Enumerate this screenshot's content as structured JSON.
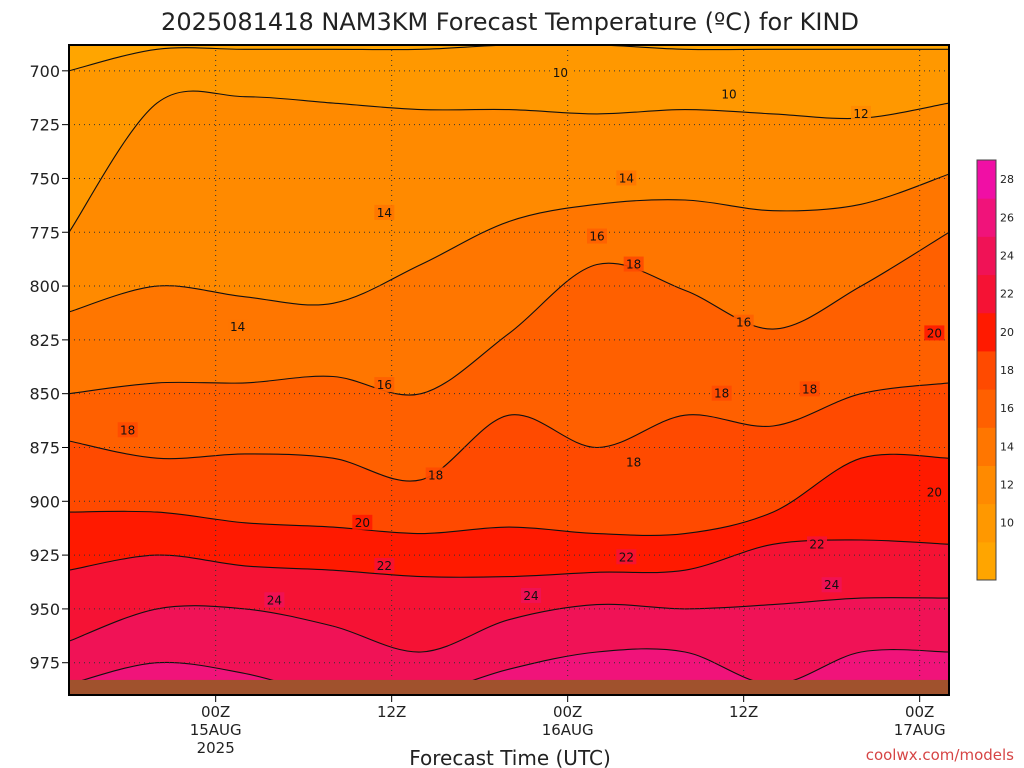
{
  "chart_data": {
    "type": "heatmap",
    "title": "2025081418 NAM3KM Forecast Temperature (ºC) for KIND",
    "xlabel": "Forecast Time (UTC)",
    "ylabel": "",
    "credit": "coolwx.com/models",
    "grid": true,
    "legend_placement": "right",
    "xlim_hours": [
      -4,
      56
    ],
    "ylim_hpa": [
      990,
      688
    ],
    "y_ticks": [
      {
        "value": 700,
        "label": "700"
      },
      {
        "value": 725,
        "label": "725"
      },
      {
        "value": 750,
        "label": "750"
      },
      {
        "value": 775,
        "label": "775"
      },
      {
        "value": 800,
        "label": "800"
      },
      {
        "value": 825,
        "label": "825"
      },
      {
        "value": 850,
        "label": "850"
      },
      {
        "value": 875,
        "label": "875"
      },
      {
        "value": 900,
        "label": "900"
      },
      {
        "value": 925,
        "label": "925"
      },
      {
        "value": 950,
        "label": "950"
      },
      {
        "value": 975,
        "label": "975"
      }
    ],
    "x_ticks": [
      {
        "value": 6,
        "label1": "00Z",
        "label2": "15AUG",
        "label3": "2025"
      },
      {
        "value": 18,
        "label1": "12Z",
        "label2": "",
        "label3": ""
      },
      {
        "value": 30,
        "label1": "00Z",
        "label2": "16AUG",
        "label3": ""
      },
      {
        "value": 42,
        "label1": "12Z",
        "label2": "",
        "label3": ""
      },
      {
        "value": 54,
        "label1": "00Z",
        "label2": "17AUG",
        "label3": ""
      }
    ],
    "colorbar": {
      "min": 8,
      "max": 30,
      "step": 2,
      "tick_labels": [
        "10",
        "12",
        "14",
        "16",
        "18",
        "20",
        "22",
        "24",
        "26",
        "28"
      ],
      "colors": [
        "#ffa500",
        "#ff9800",
        "#ff8a00",
        "#ff7600",
        "#ff6000",
        "#ff4a00",
        "#ff1a00",
        "#f51234",
        "#f01256",
        "#f0137a",
        "#f00fa5"
      ]
    },
    "surface_color": "#a0522d",
    "surface_pressure_hpa": 983,
    "x_hours": [
      -4,
      2,
      8,
      14,
      20,
      26,
      32,
      38,
      44,
      50,
      56
    ],
    "isotherm_pressure_hpa": {
      "10": [
        700,
        690,
        690,
        690,
        690,
        688,
        688,
        690,
        690,
        690,
        690
      ],
      "12": [
        775,
        715,
        712,
        715,
        718,
        718,
        720,
        718,
        720,
        722,
        715
      ],
      "14": [
        812,
        800,
        805,
        808,
        790,
        770,
        762,
        760,
        765,
        762,
        748
      ],
      "16": [
        850,
        845,
        845,
        842,
        850,
        822,
        790,
        802,
        820,
        800,
        775
      ],
      "18": [
        872,
        880,
        878,
        880,
        890,
        860,
        875,
        860,
        865,
        850,
        845
      ],
      "20": [
        905,
        905,
        910,
        912,
        915,
        912,
        915,
        915,
        905,
        880,
        880
      ],
      "22": [
        932,
        925,
        930,
        932,
        935,
        935,
        933,
        932,
        920,
        918,
        920
      ],
      "24": [
        965,
        950,
        950,
        958,
        970,
        955,
        948,
        950,
        948,
        945,
        945
      ],
      "26": [
        985,
        975,
        980,
        990,
        990,
        978,
        970,
        970,
        985,
        970,
        970
      ]
    },
    "contour_labels": [
      {
        "text": "10",
        "x": 29.5,
        "p": 701
      },
      {
        "text": "10",
        "x": 41,
        "p": 711
      },
      {
        "text": "12",
        "x": 50,
        "p": 720
      },
      {
        "text": "14",
        "x": 17.5,
        "p": 766
      },
      {
        "text": "14",
        "x": 34,
        "p": 750
      },
      {
        "text": "14",
        "x": 7.5,
        "p": 819
      },
      {
        "text": "16",
        "x": 32,
        "p": 777
      },
      {
        "text": "16",
        "x": 17.5,
        "p": 846
      },
      {
        "text": "16",
        "x": 42,
        "p": 817
      },
      {
        "text": "18",
        "x": 0,
        "p": 867
      },
      {
        "text": "18",
        "x": 34.5,
        "p": 790
      },
      {
        "text": "18",
        "x": 21,
        "p": 888
      },
      {
        "text": "18",
        "x": 34.5,
        "p": 882
      },
      {
        "text": "18",
        "x": 40.5,
        "p": 850
      },
      {
        "text": "18",
        "x": 46.5,
        "p": 848
      },
      {
        "text": "20",
        "x": 16,
        "p": 910
      },
      {
        "text": "20",
        "x": 55,
        "p": 822
      },
      {
        "text": "20",
        "x": 55,
        "p": 896
      },
      {
        "text": "22",
        "x": 17.5,
        "p": 930
      },
      {
        "text": "22",
        "x": 34,
        "p": 926
      },
      {
        "text": "22",
        "x": 47,
        "p": 920
      },
      {
        "text": "24",
        "x": 10,
        "p": 946
      },
      {
        "text": "24",
        "x": 27.5,
        "p": 944
      },
      {
        "text": "24",
        "x": 48,
        "p": 939
      }
    ]
  }
}
